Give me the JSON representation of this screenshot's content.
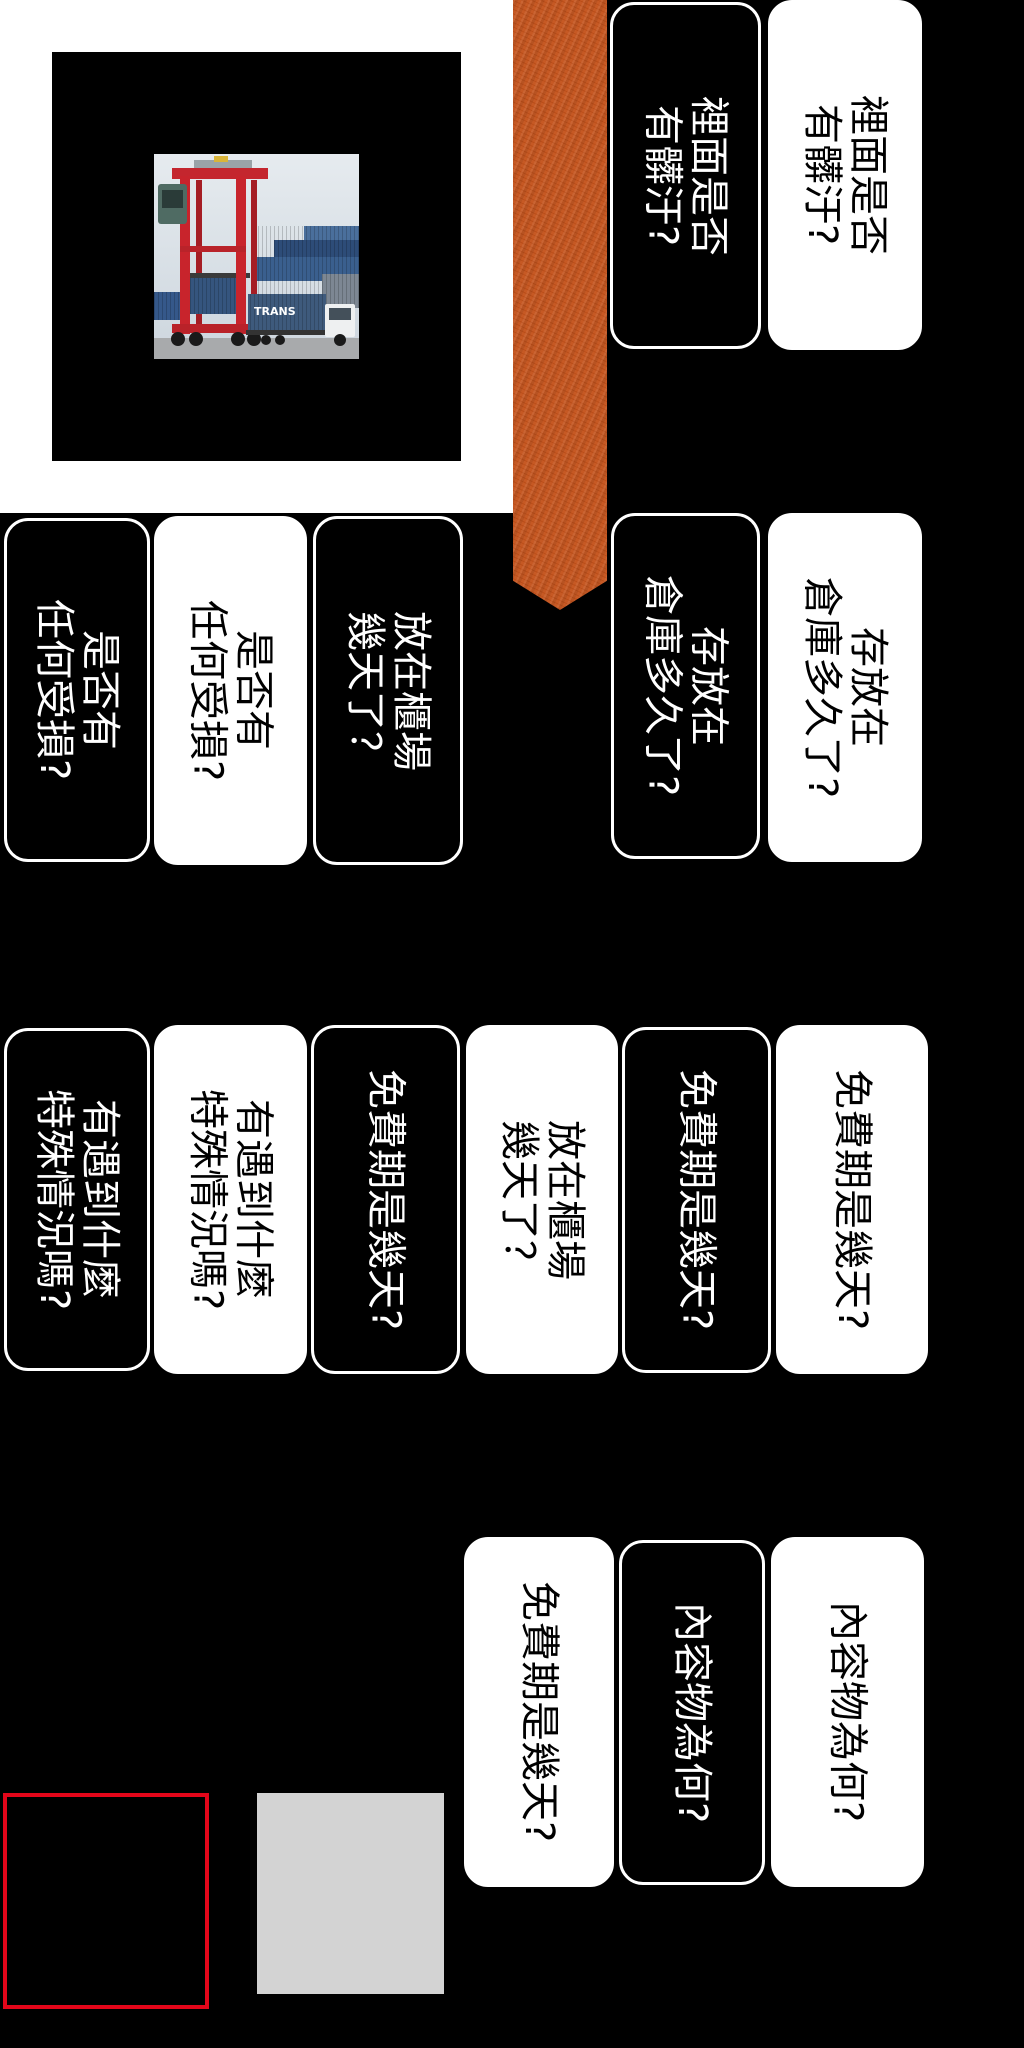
{
  "photo": {
    "icon": "straddle-carrier-photo",
    "container_text": "TRANS"
  },
  "bookmark": {
    "icon": "ribbon-bookmark"
  },
  "colors": {
    "background": "#000000",
    "panel": "#ffffff",
    "bookmark": "#c4521b",
    "card_dark": "#000000",
    "card_light": "#ffffff",
    "slot_outline": "#e3061a",
    "slot_fill": "#d3d3d3"
  },
  "cards": [
    {
      "text": "裡面是否\n有髒汙?",
      "variant": "dark"
    },
    {
      "text": "裡面是否\n有髒汙?",
      "variant": "light"
    },
    {
      "text": "是否有\n任何受損?",
      "variant": "dark"
    },
    {
      "text": "是否有\n任何受損?",
      "variant": "light"
    },
    {
      "text": "放在櫃場\n幾天了？",
      "variant": "dark"
    },
    {
      "text": "存放在\n倉庫多久了?",
      "variant": "dark"
    },
    {
      "text": "存放在\n倉庫多久了?",
      "variant": "light"
    },
    {
      "text": "有遇到什麼\n特殊情況嗎?",
      "variant": "dark"
    },
    {
      "text": "有遇到什麼\n特殊情況嗎?",
      "variant": "light"
    },
    {
      "text": "免費期是幾天?",
      "variant": "dark"
    },
    {
      "text": "放在櫃場\n幾天了？",
      "variant": "light"
    },
    {
      "text": "免費期是幾天?",
      "variant": "dark"
    },
    {
      "text": "免費期是幾天?",
      "variant": "light"
    },
    {
      "text": "免費期是幾天?",
      "variant": "light"
    },
    {
      "text": "內容物為何?",
      "variant": "dark"
    },
    {
      "text": "內容物為何?",
      "variant": "light"
    }
  ]
}
